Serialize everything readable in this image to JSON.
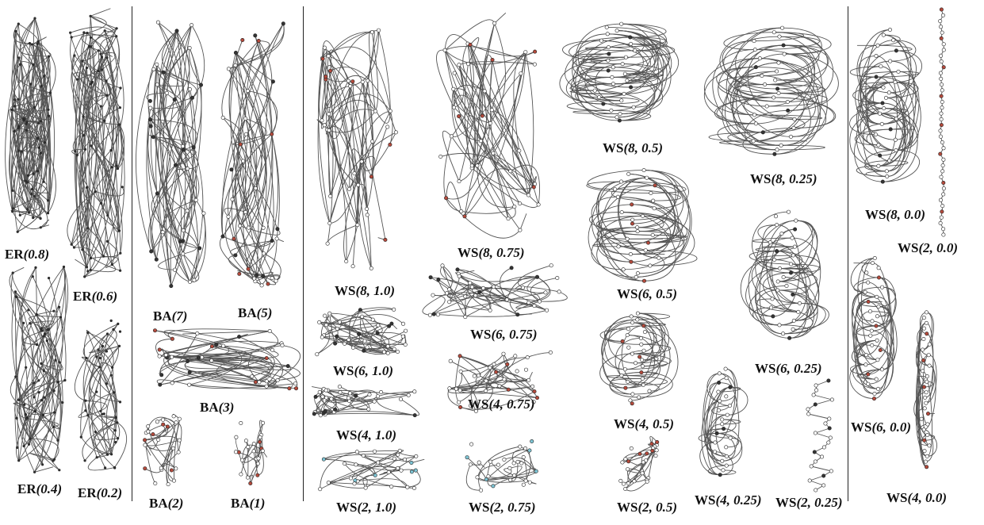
{
  "colors": {
    "edge": "#555555",
    "node_fill": "#ffffff",
    "node_stroke": "#222222",
    "node_dark": "#333333",
    "node_red": "#b44a3c",
    "node_blue": "#7fc6d6",
    "separator": "#222222"
  },
  "panels": [
    {
      "id": "er-0.8",
      "model": "ER",
      "param": "(0.8)",
      "kind": "er",
      "seed": 11,
      "nodes": 60,
      "edges": 140,
      "accent": "dark"
    },
    {
      "id": "er-0.6",
      "model": "ER",
      "param": "(0.6)",
      "kind": "er",
      "seed": 12,
      "nodes": 60,
      "edges": 110,
      "accent": "dark"
    },
    {
      "id": "er-0.4",
      "model": "ER",
      "param": "(0.4)",
      "kind": "er",
      "seed": 13,
      "nodes": 60,
      "edges": 85,
      "accent": "dark"
    },
    {
      "id": "er-0.2",
      "model": "ER",
      "param": "(0.2)",
      "kind": "er",
      "seed": 14,
      "nodes": 40,
      "edges": 45,
      "accent": "dark"
    },
    {
      "id": "ba-7",
      "model": "BA",
      "param": "(7)",
      "kind": "ba",
      "seed": 21,
      "nodes": 40,
      "edges": 80,
      "accent": "dark"
    },
    {
      "id": "ba-5",
      "model": "BA",
      "param": "(5)",
      "kind": "ba",
      "seed": 22,
      "nodes": 40,
      "edges": 70,
      "accent": "red"
    },
    {
      "id": "ba-3",
      "model": "BA",
      "param": "(3)",
      "kind": "ba",
      "seed": 23,
      "nodes": 36,
      "edges": 55,
      "accent": "red"
    },
    {
      "id": "ba-2",
      "model": "BA",
      "param": "(2)",
      "kind": "tree",
      "seed": 24,
      "nodes": 26,
      "edges": 30,
      "accent": "red"
    },
    {
      "id": "ba-1",
      "model": "BA",
      "param": "(1)",
      "kind": "tree",
      "seed": 25,
      "nodes": 22,
      "edges": 21,
      "accent": "red"
    },
    {
      "id": "ws-8-1.0",
      "model": "WS",
      "param": "(8, 1.0)",
      "kind": "ws",
      "seed": 31,
      "nodes": 40,
      "edges": 80,
      "accent": "red"
    },
    {
      "id": "ws-6-1.0",
      "model": "WS",
      "param": "(6, 1.0)",
      "kind": "ws",
      "seed": 32,
      "nodes": 36,
      "edges": 60,
      "accent": "dark"
    },
    {
      "id": "ws-4-1.0",
      "model": "WS",
      "param": "(4, 1.0)",
      "kind": "ws",
      "seed": 33,
      "nodes": 32,
      "edges": 40,
      "accent": "dark"
    },
    {
      "id": "ws-2-1.0",
      "model": "WS",
      "param": "(2, 1.0)",
      "kind": "tree",
      "seed": 34,
      "nodes": 30,
      "edges": 30,
      "accent": "blue"
    },
    {
      "id": "ws-8-0.75",
      "model": "WS",
      "param": "(8, 0.75)",
      "kind": "ws",
      "seed": 41,
      "nodes": 40,
      "edges": 80,
      "accent": "red"
    },
    {
      "id": "ws-6-0.75",
      "model": "WS",
      "param": "(6, 0.75)",
      "kind": "ws",
      "seed": 42,
      "nodes": 36,
      "edges": 60,
      "accent": "dark"
    },
    {
      "id": "ws-4-0.75",
      "model": "WS",
      "param": "(4, 0.75)",
      "kind": "ws",
      "seed": 43,
      "nodes": 32,
      "edges": 40,
      "accent": "red"
    },
    {
      "id": "ws-2-0.75",
      "model": "WS",
      "param": "(2, 0.75)",
      "kind": "tree",
      "seed": 44,
      "nodes": 28,
      "edges": 28,
      "accent": "blue"
    },
    {
      "id": "ws-8-0.5",
      "model": "WS",
      "param": "(8, 0.5)",
      "kind": "ring",
      "seed": 51,
      "nodes": 30,
      "edges": 70,
      "accent": "dark"
    },
    {
      "id": "ws-6-0.5",
      "model": "WS",
      "param": "(6, 0.5)",
      "kind": "ring",
      "seed": 52,
      "nodes": 30,
      "edges": 55,
      "accent": "red"
    },
    {
      "id": "ws-4-0.5",
      "model": "WS",
      "param": "(4, 0.5)",
      "kind": "ring",
      "seed": 53,
      "nodes": 30,
      "edges": 40,
      "accent": "red"
    },
    {
      "id": "ws-2-0.5",
      "model": "WS",
      "param": "(2, 0.5)",
      "kind": "tree",
      "seed": 54,
      "nodes": 26,
      "edges": 26,
      "accent": "red"
    },
    {
      "id": "ws-8-0.25",
      "model": "WS",
      "param": "(8, 0.25)",
      "kind": "ring",
      "seed": 61,
      "nodes": 30,
      "edges": 70,
      "accent": "dark"
    },
    {
      "id": "ws-6-0.25",
      "model": "WS",
      "param": "(6, 0.25)",
      "kind": "ring",
      "seed": 62,
      "nodes": 30,
      "edges": 55,
      "accent": "dark"
    },
    {
      "id": "ws-4-0.25",
      "model": "WS",
      "param": "(4, 0.25)",
      "kind": "ring",
      "seed": 63,
      "nodes": 24,
      "edges": 36,
      "accent": "dark"
    },
    {
      "id": "ws-2-0.25",
      "model": "WS",
      "param": "(2, 0.25)",
      "kind": "chain",
      "seed": 64,
      "nodes": 24,
      "edges": 24,
      "accent": "dark"
    },
    {
      "id": "ws-8-0.0",
      "model": "WS",
      "param": "(8, 0.0)",
      "kind": "ring",
      "seed": 71,
      "nodes": 30,
      "edges": 70,
      "accent": "dark"
    },
    {
      "id": "ws-2-0.0",
      "model": "WS",
      "param": "(2, 0.0)",
      "kind": "chain",
      "seed": 72,
      "nodes": 40,
      "edges": 39,
      "accent": "red"
    },
    {
      "id": "ws-6-0.0",
      "model": "WS",
      "param": "(6, 0.0)",
      "kind": "ring",
      "seed": 73,
      "nodes": 30,
      "edges": 55,
      "accent": "red"
    },
    {
      "id": "ws-4-0.0",
      "model": "WS",
      "param": "(4, 0.0)",
      "kind": "ring",
      "seed": 74,
      "nodes": 30,
      "edges": 40,
      "accent": "red"
    }
  ]
}
